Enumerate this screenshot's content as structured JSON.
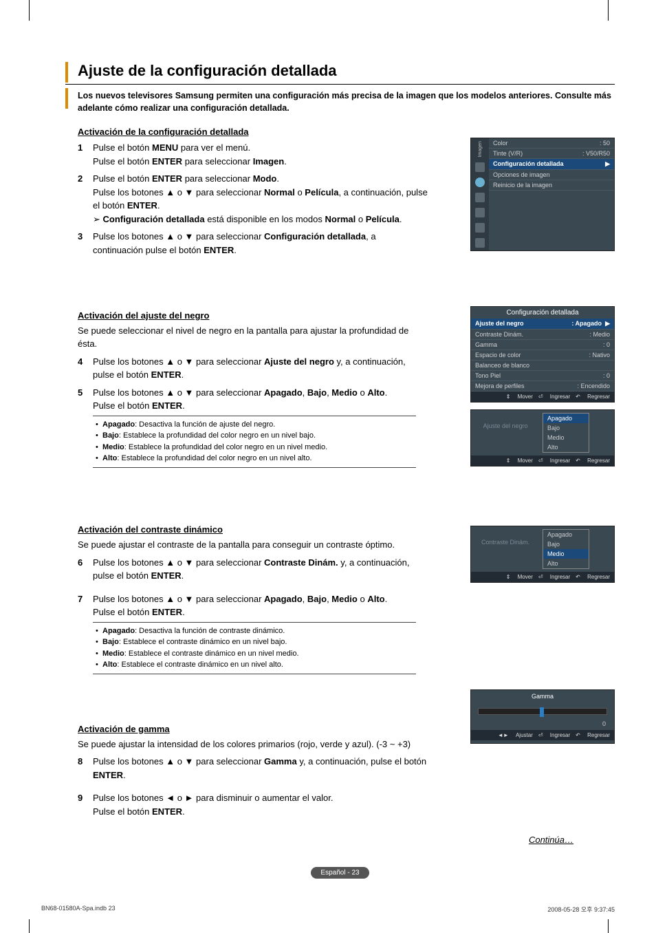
{
  "page": {
    "title": "Ajuste de la configuración detallada",
    "intro": "Los nuevos televisores Samsung permiten una configuración más precisa de la imagen que los modelos anteriores. Consulte más adelante cómo realizar una configuración detallada.",
    "continue": "Continúa…",
    "lang_label": "Español - 23",
    "doc_ref": "BN68-01580A-Spa.indb   23",
    "timestamp": "2008-05-28   오후 9:37:45"
  },
  "sec1": {
    "heading": "Activación de la configuración detallada",
    "step1": "Pulse el botón <b>MENU</b> para ver el menú.<br>Pulse el botón <b>ENTER</b> para seleccionar <b>Imagen</b>.",
    "step2": "Pulse el botón <b>ENTER</b> para seleccionar <b>Modo</b>.<br>Pulse los botones ▲ o ▼ para seleccionar <b>Normal</b> o <b>Película</b>, a continuación, pulse el botón <b>ENTER</b>.",
    "note2": "➢  <b>Configuración detallada</b> está disponible en los modos <b>Normal</b> o <b>Película</b>.",
    "step3": "Pulse los botones ▲ o ▼ para seleccionar <b>Configuración detallada</b>, a continuación pulse el botón <b>ENTER</b>."
  },
  "sec2": {
    "heading": "Activación del ajuste del negro",
    "intro": "Se puede seleccionar el nivel de negro en la pantalla para ajustar la profundidad de ésta.",
    "step4": "Pulse los botones ▲ o ▼ para seleccionar <b>Ajuste del negro</b> y, a continuación, pulse el botón <b>ENTER</b>.",
    "step5": "Pulse los botones ▲ o ▼ para seleccionar <b>Apagado</b>, <b>Bajo</b>, <b>Medio</b> o <b>Alto</b>.<br>Pulse el botón <b>ENTER</b>.",
    "b1": "<b>Apagado</b>: Desactiva la función de ajuste del negro.",
    "b2": "<b>Bajo</b>: Establece la profundidad del color negro en un nivel bajo.",
    "b3": "<b>Medio</b>: Establece la profundidad del color negro en un nivel medio.",
    "b4": "<b>Alto</b>: Establece la profundidad del color negro en un nivel alto."
  },
  "sec3": {
    "heading": "Activación del contraste dinámico",
    "intro": "Se puede ajustar el contraste de la pantalla para conseguir un contraste óptimo.",
    "step6": "Pulse los botones ▲ o ▼ para seleccionar <b>Contraste Dinám.</b> y, a continuación, pulse el botón <b>ENTER</b>.",
    "step7": "Pulse los botones ▲ o ▼ para seleccionar <b>Apagado</b>, <b>Bajo</b>, <b>Medio</b> o <b>Alto</b>.<br>Pulse el botón <b>ENTER</b>.",
    "b1": "<b>Apagado</b>: Desactiva la función de contraste dinámico.",
    "b2": "<b>Bajo</b>: Establece el contraste dinámico en un nivel bajo.",
    "b3": "<b>Medio</b>: Establece el contraste dinámico en un nivel medio.",
    "b4": "<b>Alto</b>: Establece el contraste dinámico en un nivel alto."
  },
  "sec4": {
    "heading": "Activación de gamma",
    "intro": "Se puede ajustar la intensidad de los colores primarios (rojo, verde y azul). (-3 ~ +3)",
    "step8": "Pulse los botones ▲ o ▼ para seleccionar <b>Gamma</b> y, a continuación, pulse el botón <b>ENTER</b>.",
    "step9": "Pulse los botones ◄ o ► para disminuir o aumentar el valor.<br>Pulse el botón <b>ENTER</b>."
  },
  "osd1": {
    "sidebar_label": "Imagen",
    "rows": [
      {
        "l": "Color",
        "r": ": 50"
      },
      {
        "l": "Tinte (V/R)",
        "r": ": V50/R50"
      }
    ],
    "sel": "Configuración detallada",
    "rows2": [
      {
        "l": "Opciones de imagen",
        "r": ""
      },
      {
        "l": "Reinicio de la imagen",
        "r": ""
      }
    ]
  },
  "osd2": {
    "title": "Configuración detallada",
    "rows": [
      {
        "l": "Ajuste del negro",
        "r": ": Apagado",
        "sel": true
      },
      {
        "l": "Contraste Dinám.",
        "r": ": Medio"
      },
      {
        "l": "Gamma",
        "r": ": 0"
      },
      {
        "l": "Espacio de color",
        "r": ": Nativo"
      },
      {
        "l": "Balanceo de blanco",
        "r": ""
      },
      {
        "l": "Tono Piel",
        "r": ": 0"
      },
      {
        "l": "Mejora de perfiles",
        "r": ": Encendido"
      }
    ]
  },
  "osd3": {
    "label": "Ajuste del negro",
    "options": [
      "Apagado",
      "Bajo",
      "Medio",
      "Alto"
    ],
    "sel": "Apagado"
  },
  "osd4": {
    "label": "Contraste Dinám.",
    "options": [
      "Apagado",
      "Bajo",
      "Medio",
      "Alto"
    ],
    "sel": "Medio"
  },
  "osd5": {
    "title": "Gamma",
    "value": "0"
  },
  "footer": {
    "mover": "Mover",
    "ingresar": "Ingresar",
    "regresar": "Regresar",
    "ajustar": "Ajustar"
  }
}
